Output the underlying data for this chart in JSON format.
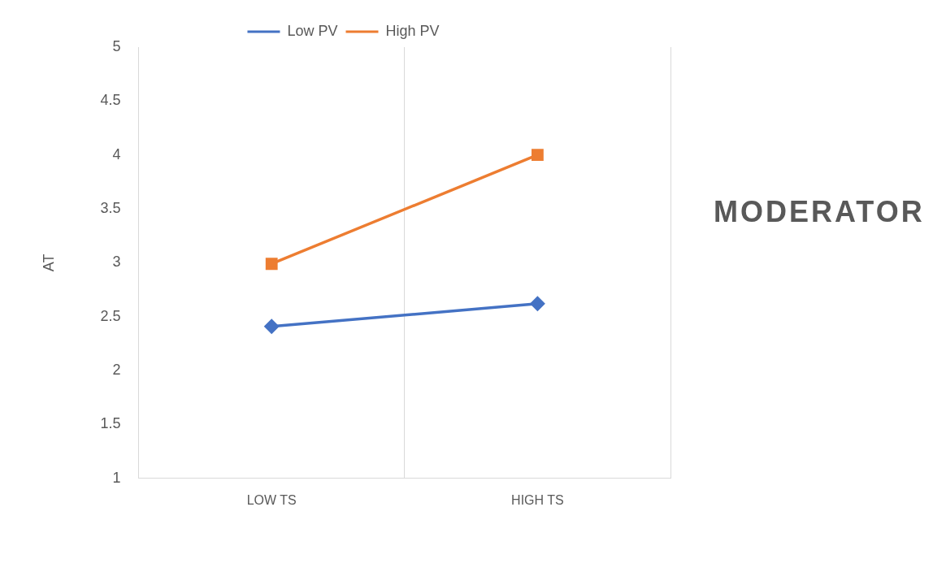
{
  "chart_data": {
    "type": "line",
    "ylabel": "AT",
    "categories": [
      "LOW TS",
      "HIGH TS"
    ],
    "series": [
      {
        "name": "Low PV",
        "color": "#4472c4",
        "values": [
          2.41,
          2.62
        ],
        "marker": "diamond"
      },
      {
        "name": "High PV",
        "color": "#ed7d31",
        "values": [
          2.99,
          4.0
        ],
        "marker": "square"
      }
    ],
    "ylim": [
      1,
      5
    ],
    "yticks": [
      1,
      1.5,
      2,
      2.5,
      3,
      3.5,
      4,
      4.5,
      5
    ],
    "grid": "x",
    "legend": "top",
    "annotations": [
      "MODERATOR"
    ]
  }
}
